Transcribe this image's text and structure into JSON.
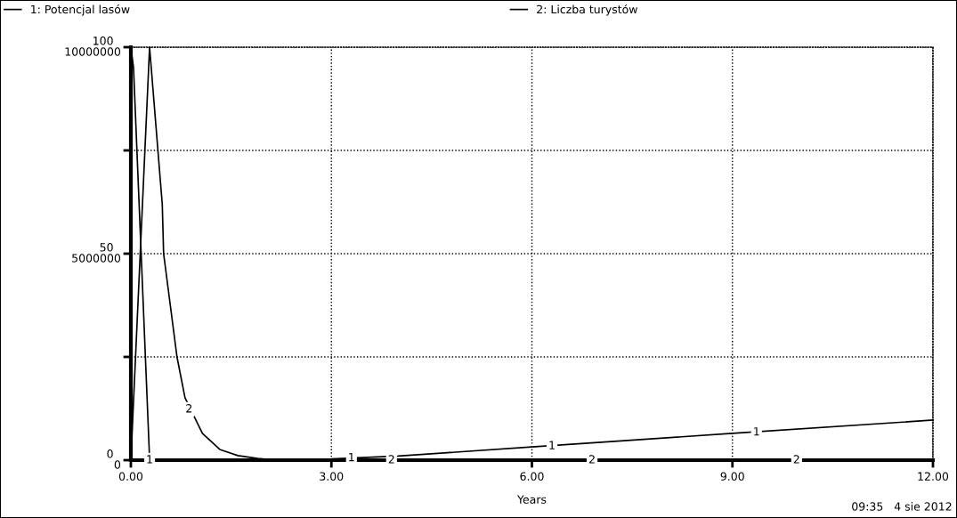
{
  "chart_data": {
    "type": "line",
    "xlabel": "Years",
    "xlim": [
      0,
      12
    ],
    "xticks": [
      {
        "value": 0,
        "label": "0.00"
      },
      {
        "value": 3,
        "label": "3.00"
      },
      {
        "value": 6,
        "label": "6.00"
      },
      {
        "value": 9,
        "label": "9.00"
      },
      {
        "value": 12,
        "label": "12.00"
      }
    ],
    "ylim": [
      0,
      100
    ],
    "yticks": [
      0,
      {
        "value": 25,
        "label": null
      },
      50,
      {
        "value": 75,
        "label": null
      },
      100
    ],
    "y2lim": [
      0,
      10000000
    ],
    "y2ticks": [
      0,
      5000000,
      10000000
    ],
    "grid": true,
    "legend": "top",
    "line_style": "solid",
    "marker": "none",
    "series": [
      {
        "name": "1: Potencjal lasów",
        "color": "#000000",
        "x": [
          0,
          0.04,
          0.28,
          1.0,
          2.0,
          3.0,
          3.3,
          4.0,
          6.0,
          9.0,
          12.0
        ],
        "values": [
          100,
          95,
          0.3,
          0.2,
          0.2,
          0.3,
          0.5,
          1.0,
          3.2,
          6.5,
          9.7
        ]
      },
      {
        "name": "2: Liczba turystów",
        "axis": "y2",
        "color": "#000000",
        "x": [
          0,
          0.28,
          0.47,
          0.49,
          0.69,
          0.81,
          1.07,
          1.33,
          1.6,
          1.9,
          2.2,
          12.0
        ],
        "values": [
          0,
          10000000,
          6190000,
          5000000,
          2500000,
          1510000,
          650000,
          260000,
          110000,
          40000,
          0,
          0
        ]
      }
    ],
    "annotations": [
      {
        "text": "1",
        "x": 0.28,
        "y": 0
      },
      {
        "text": "1",
        "x": 3.3,
        "y": 0.5
      },
      {
        "text": "1",
        "x": 6.3,
        "y": 3.4
      },
      {
        "text": "1",
        "x": 9.36,
        "y": 6.7
      },
      {
        "text": "2",
        "x": 0.87,
        "y": 12.3
      },
      {
        "text": "2",
        "x": 3.9,
        "y": 0
      },
      {
        "text": "2",
        "x": 6.9,
        "y": 0
      },
      {
        "text": "2",
        "x": 9.96,
        "y": 0
      },
      "09:35   4 sie 2012"
    ]
  }
}
